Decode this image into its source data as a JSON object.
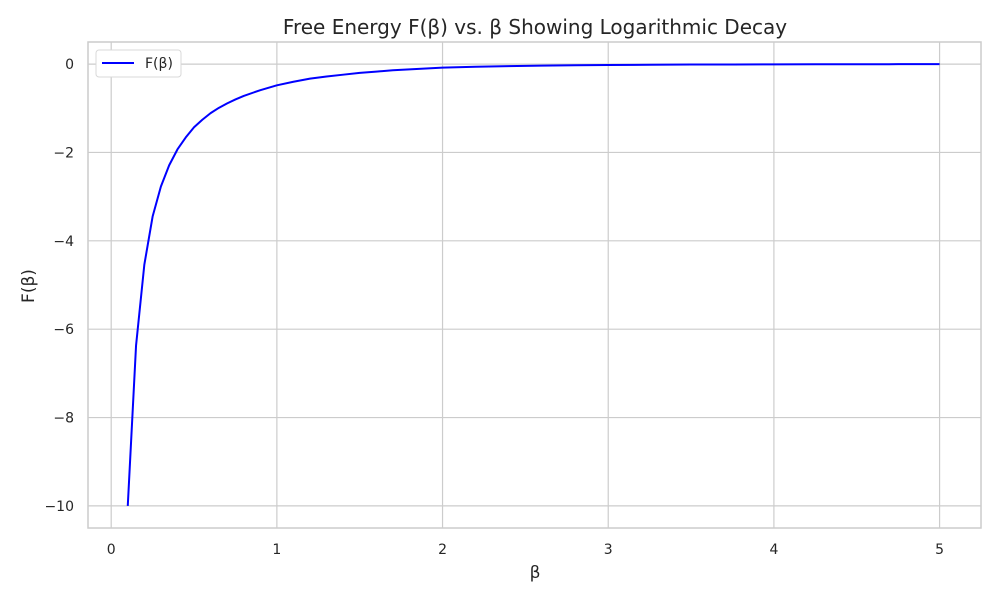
{
  "chart_data": {
    "type": "line",
    "title": "Free Energy F(β) vs. β Showing Logarithmic Decay",
    "xlabel": "β",
    "ylabel": "F(β)",
    "xlim": [
      -0.14,
      5.25
    ],
    "ylim": [
      -10.5,
      0.5
    ],
    "xticks": [
      0,
      1,
      2,
      3,
      4,
      5
    ],
    "xtick_labels": [
      "0",
      "1",
      "2",
      "3",
      "4",
      "5"
    ],
    "yticks": [
      0,
      -2,
      -4,
      -6,
      -8,
      -10
    ],
    "ytick_labels": [
      "0",
      "−2",
      "−4",
      "−6",
      "−8",
      "−10"
    ],
    "grid": true,
    "legend_position": "top-left",
    "series": [
      {
        "name": "F(β)",
        "color": "#0000ff",
        "x": [
          0.1,
          0.15,
          0.2,
          0.25,
          0.3,
          0.35,
          0.4,
          0.45,
          0.5,
          0.55,
          0.6,
          0.65,
          0.7,
          0.75,
          0.8,
          0.9,
          1.0,
          1.1,
          1.2,
          1.3,
          1.4,
          1.5,
          1.6,
          1.7,
          1.8,
          1.9,
          2.0,
          2.2,
          2.4,
          2.6,
          2.8,
          3.0,
          3.25,
          3.5,
          3.75,
          4.0,
          4.25,
          4.5,
          4.75,
          5.0
        ],
        "y": [
          -10.0,
          -6.37,
          -4.54,
          -3.45,
          -2.77,
          -2.29,
          -1.93,
          -1.66,
          -1.43,
          -1.26,
          -1.11,
          -0.99,
          -0.89,
          -0.8,
          -0.72,
          -0.59,
          -0.48,
          -0.4,
          -0.33,
          -0.28,
          -0.24,
          -0.2,
          -0.17,
          -0.14,
          -0.12,
          -0.1,
          -0.08,
          -0.06,
          -0.045,
          -0.035,
          -0.025,
          -0.02,
          -0.015,
          -0.01,
          -0.008,
          -0.006,
          -0.004,
          -0.003,
          -0.002,
          -0.0015
        ]
      }
    ]
  }
}
